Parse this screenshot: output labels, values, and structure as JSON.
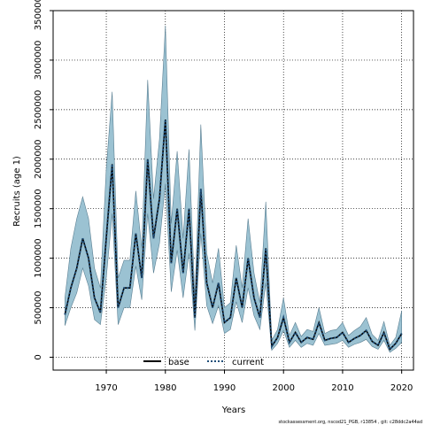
{
  "chart_data": {
    "type": "line",
    "title": "",
    "xlabel": "Years",
    "ylabel": "Recruits (age 1)",
    "xlim": [
      1961,
      2022
    ],
    "ylim": [
      -130000,
      3500000
    ],
    "xticks": [
      1970,
      1980,
      1990,
      2000,
      2010,
      2020
    ],
    "yticks": [
      0,
      500000,
      1000000,
      1500000,
      2000000,
      2500000,
      3000000,
      3500000
    ],
    "grid": true,
    "legend_position": "bottom-center",
    "colors": {
      "band": "#9bc2d2",
      "band_edge": "#5a7f92",
      "base": "#000000",
      "current": "#1f4e79"
    },
    "x": [
      1963,
      1964,
      1965,
      1966,
      1967,
      1968,
      1969,
      1970,
      1971,
      1972,
      1973,
      1974,
      1975,
      1976,
      1977,
      1978,
      1979,
      1980,
      1981,
      1982,
      1983,
      1984,
      1985,
      1986,
      1987,
      1988,
      1989,
      1990,
      1991,
      1992,
      1993,
      1994,
      1995,
      1996,
      1997,
      1998,
      1999,
      2000,
      2001,
      2002,
      2003,
      2004,
      2005,
      2006,
      2007,
      2008,
      2009,
      2010,
      2011,
      2012,
      2013,
      2014,
      2015,
      2016,
      2017,
      2018,
      2019,
      2020
    ],
    "series": [
      {
        "name": "base",
        "values": [
          430000,
          700000,
          900000,
          1200000,
          1000000,
          600000,
          450000,
          1200000,
          1950000,
          500000,
          700000,
          700000,
          1250000,
          800000,
          2000000,
          1200000,
          1600000,
          2400000,
          950000,
          1500000,
          850000,
          1500000,
          400000,
          1700000,
          750000,
          500000,
          750000,
          350000,
          400000,
          800000,
          500000,
          1000000,
          600000,
          400000,
          1100000,
          110000,
          200000,
          400000,
          150000,
          250000,
          150000,
          200000,
          180000,
          350000,
          170000,
          190000,
          200000,
          250000,
          150000,
          190000,
          220000,
          270000,
          160000,
          120000,
          250000,
          80000,
          140000,
          240000
        ]
      },
      {
        "name": "current",
        "values": [
          430000,
          700000,
          900000,
          1200000,
          1000000,
          600000,
          450000,
          1200000,
          1950000,
          500000,
          700000,
          700000,
          1250000,
          800000,
          2000000,
          1200000,
          1600000,
          2400000,
          950000,
          1500000,
          850000,
          1500000,
          400000,
          1700000,
          750000,
          500000,
          750000,
          350000,
          400000,
          800000,
          500000,
          1000000,
          600000,
          400000,
          1100000,
          110000,
          200000,
          400000,
          150000,
          250000,
          150000,
          200000,
          180000,
          350000,
          170000,
          190000,
          200000,
          250000,
          150000,
          190000,
          220000,
          270000,
          160000,
          120000,
          250000,
          80000,
          140000,
          240000
        ]
      }
    ],
    "band": {
      "upper": [
        600000,
        1100000,
        1400000,
        1620000,
        1400000,
        900000,
        700000,
        1900000,
        2680000,
        800000,
        980000,
        980000,
        1680000,
        1100000,
        2800000,
        1600000,
        2200000,
        3350000,
        1350000,
        2080000,
        1200000,
        2100000,
        600000,
        2350000,
        1050000,
        750000,
        1100000,
        500000,
        550000,
        1130000,
        700000,
        1400000,
        850000,
        550000,
        1570000,
        170000,
        280000,
        600000,
        220000,
        350000,
        210000,
        280000,
        260000,
        500000,
        240000,
        270000,
        280000,
        350000,
        220000,
        270000,
        310000,
        400000,
        230000,
        170000,
        360000,
        120000,
        200000,
        470000
      ],
      "lower": [
        320000,
        500000,
        650000,
        900000,
        720000,
        380000,
        330000,
        800000,
        1450000,
        330000,
        500000,
        500000,
        920000,
        580000,
        1450000,
        850000,
        1150000,
        1750000,
        660000,
        1080000,
        600000,
        1050000,
        270000,
        1250000,
        520000,
        340000,
        520000,
        240000,
        280000,
        560000,
        350000,
        700000,
        420000,
        280000,
        750000,
        70000,
        140000,
        270000,
        100000,
        170000,
        100000,
        140000,
        120000,
        240000,
        120000,
        130000,
        140000,
        170000,
        100000,
        130000,
        150000,
        180000,
        110000,
        80000,
        170000,
        50000,
        90000,
        150000
      ]
    },
    "footnote": "stockassessment.org, nscod21_PGB, r13854 , git: c28ddc2a44ad"
  }
}
